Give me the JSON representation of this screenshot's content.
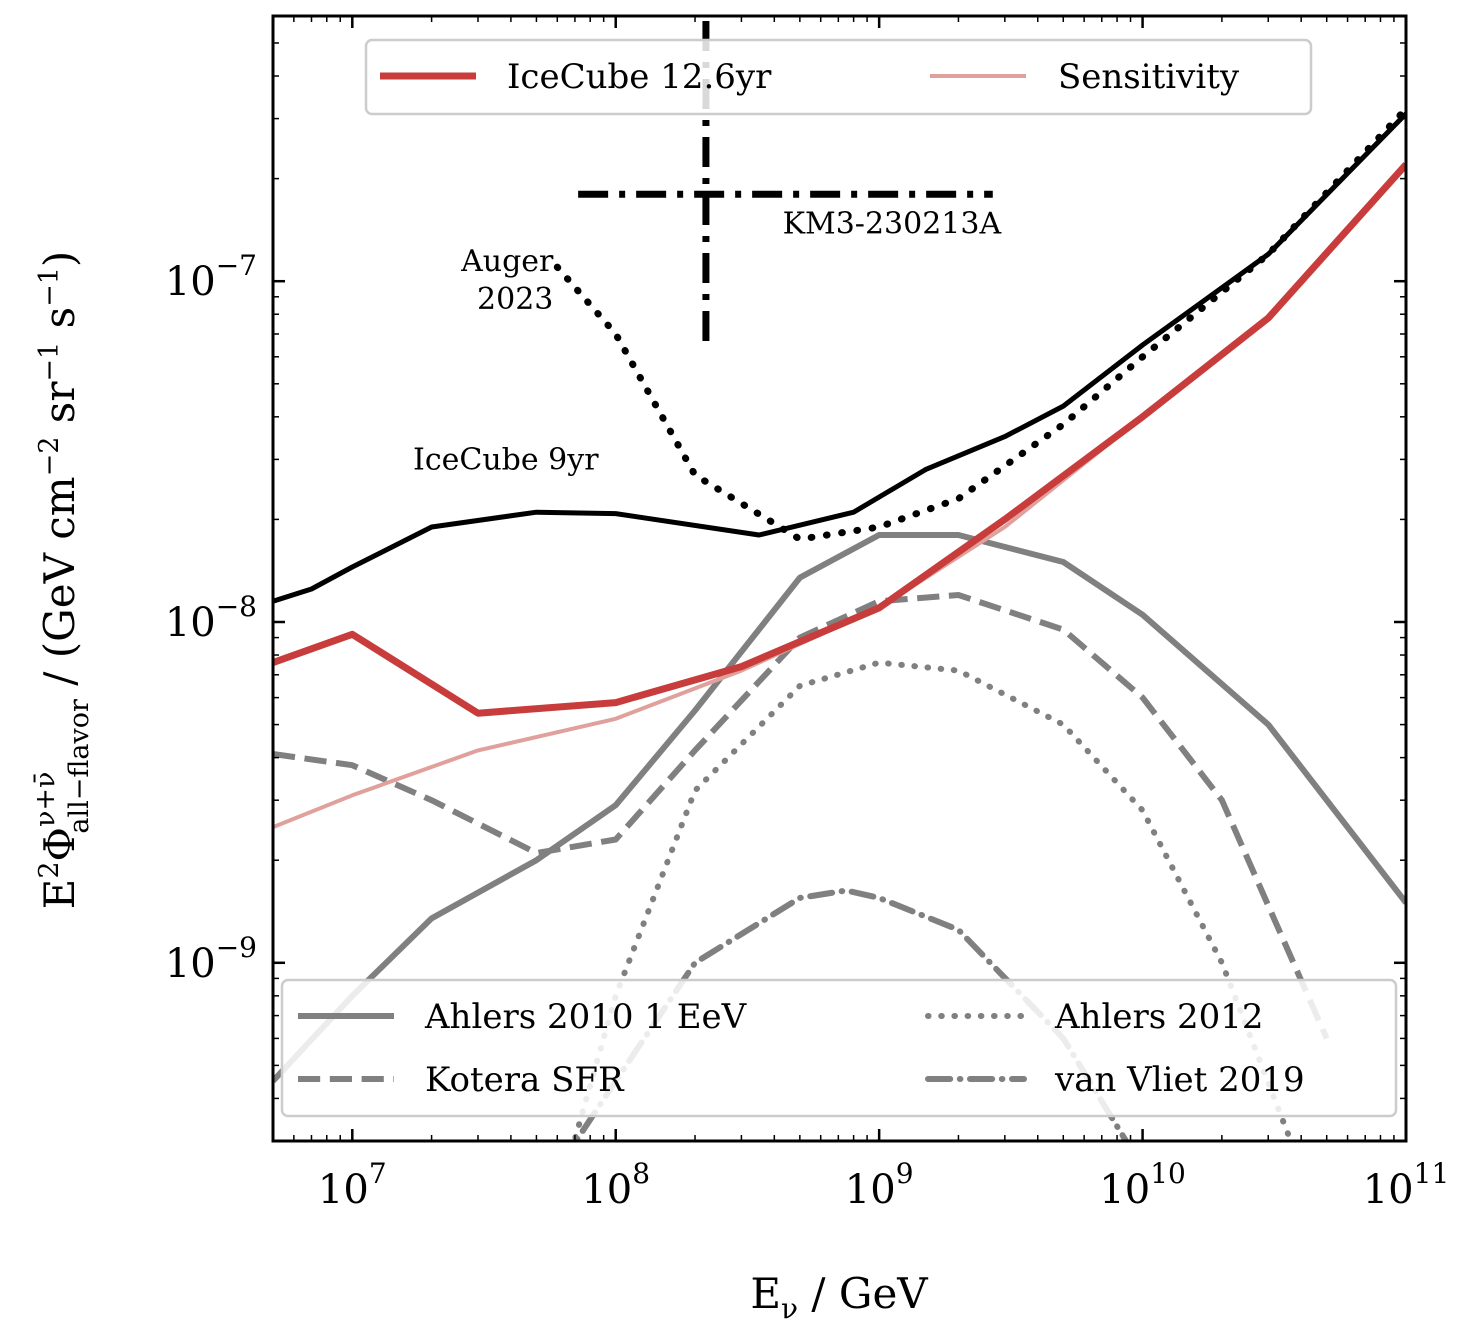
{
  "chart_data": {
    "type": "line",
    "xscale": "log",
    "yscale": "log",
    "xlim": [
      5000000,
      100000000000
    ],
    "ylim": [
      3e-10,
      6e-07
    ],
    "xlabel": "Eν / GeV",
    "ylabel": "E²Φ(ν+ν̄) all−flavor / (GeV cm⁻² sr⁻¹ s⁻¹)",
    "ylabel_parts": {
      "main1": "E",
      "sup1": "2",
      "main2": "Φ",
      "sup2": "ν+ν̄",
      "sub": "all−flavor",
      "rest1": " / (GeV cm",
      "sup3": "−2",
      "rest2": " sr",
      "sup4": "−1",
      "rest3": " s",
      "sup5": "−1",
      "rest4": ")"
    },
    "xticks": [
      {
        "value": 10000000,
        "base": "10",
        "exp": "7"
      },
      {
        "value": 100000000,
        "base": "10",
        "exp": "8"
      },
      {
        "value": 1000000000,
        "base": "10",
        "exp": "9"
      },
      {
        "value": 10000000000,
        "base": "10",
        "exp": "10"
      },
      {
        "value": 100000000000,
        "base": "10",
        "exp": "11"
      }
    ],
    "yticks": [
      {
        "value": 1e-09,
        "base": "10",
        "exp": "−9"
      },
      {
        "value": 1e-08,
        "base": "10",
        "exp": "−8"
      },
      {
        "value": 1e-07,
        "base": "10",
        "exp": "−7"
      }
    ],
    "series": [
      {
        "name": "IceCube 12.6yr",
        "color": "#c83c3c",
        "style": "solid",
        "width": 7,
        "in_legend": "top",
        "x": [
          5000000.0,
          10000000.0,
          30000000.0,
          100000000.0,
          300000000.0,
          1000000000.0,
          3000000000.0,
          10000000000.0,
          30000000000.0,
          100000000000.0
        ],
        "y": [
          7.6e-09,
          9.2e-09,
          5.4e-09,
          5.8e-09,
          7.4e-09,
          1.1e-08,
          2e-08,
          4e-08,
          7.8e-08,
          2.2e-07
        ]
      },
      {
        "name": "Sensitivity",
        "color": "#e0a09c",
        "style": "solid",
        "width": 4,
        "in_legend": "top",
        "x": [
          5000000.0,
          10000000.0,
          30000000.0,
          100000000.0,
          300000000.0,
          1000000000.0,
          3000000000.0,
          10000000000.0,
          30000000000.0,
          100000000000.0
        ],
        "y": [
          2.5e-09,
          3.1e-09,
          4.2e-09,
          5.2e-09,
          7.2e-09,
          1.1e-08,
          1.9e-08,
          4e-08,
          7.8e-08,
          2.2e-07
        ]
      },
      {
        "name": "IceCube 9yr",
        "color": "#000000",
        "style": "solid",
        "width": 5,
        "in_legend": "none",
        "x": [
          5000000.0,
          7000000.0,
          10000000.0,
          20000000.0,
          50000000.0,
          100000000.0,
          350000000.0,
          800000000.0,
          1500000000.0,
          3000000000.0,
          5000000000.0,
          10000000000.0,
          30000000000.0,
          100000000000.0
        ],
        "y": [
          1.15e-08,
          1.25e-08,
          1.45e-08,
          1.9e-08,
          2.1e-08,
          2.08e-08,
          1.8e-08,
          2.1e-08,
          2.8e-08,
          3.5e-08,
          4.3e-08,
          6.5e-08,
          1.2e-07,
          3.1e-07
        ]
      },
      {
        "name": "Auger 2023",
        "color": "#000000",
        "style": "dotted",
        "width": 7,
        "in_legend": "none",
        "x": [
          60000000.0,
          100000000.0,
          200000000.0,
          500000000.0,
          1000000000.0,
          2000000000.0,
          5000000000.0,
          10000000000.0,
          30000000000.0,
          100000000000.0
        ],
        "y": [
          1.1e-07,
          7e-08,
          2.7e-08,
          1.75e-08,
          1.9e-08,
          2.3e-08,
          3.8e-08,
          6e-08,
          1.2e-07,
          3.2e-07
        ]
      },
      {
        "name": "Ahlers 2010 1 EeV",
        "color": "#808080",
        "style": "solid",
        "width": 6,
        "in_legend": "bottom",
        "x": [
          5000000.0,
          10000000.0,
          20000000.0,
          50000000.0,
          100000000.0,
          200000000.0,
          500000000.0,
          1000000000.0,
          2000000000.0,
          5000000000.0,
          10000000000.0,
          30000000000.0,
          100000000000.0
        ],
        "y": [
          4.5e-10,
          8e-10,
          1.35e-09,
          2e-09,
          2.9e-09,
          5.5e-09,
          1.35e-08,
          1.8e-08,
          1.8e-08,
          1.5e-08,
          1.05e-08,
          5e-09,
          1.5e-09
        ]
      },
      {
        "name": "Kotera SFR",
        "color": "#808080",
        "style": "dashed",
        "width": 6,
        "in_legend": "bottom",
        "x": [
          5000000.0,
          10000000.0,
          20000000.0,
          50000000.0,
          100000000.0,
          200000000.0,
          500000000.0,
          1000000000.0,
          2000000000.0,
          5000000000.0,
          10000000000.0,
          20000000000.0,
          50000000000.0
        ],
        "y": [
          4.1e-09,
          3.8e-09,
          3e-09,
          2.1e-09,
          2.3e-09,
          4.2e-09,
          9e-09,
          1.15e-08,
          1.2e-08,
          9.5e-09,
          6e-09,
          3e-09,
          6e-10
        ]
      },
      {
        "name": "Ahlers 2012",
        "color": "#808080",
        "style": "dotted",
        "width": 6,
        "in_legend": "bottom",
        "x": [
          60000000.0,
          100000000.0,
          200000000.0,
          500000000.0,
          1000000000.0,
          2000000000.0,
          5000000000.0,
          10000000000.0,
          20000000000.0,
          40000000000.0
        ],
        "y": [
          2e-10,
          8e-10,
          3.2e-09,
          6.5e-09,
          7.6e-09,
          7.2e-09,
          5e-09,
          2.8e-09,
          1e-09,
          2.5e-10
        ]
      },
      {
        "name": "van Vliet 2019",
        "color": "#808080",
        "style": "dashdot",
        "width": 6,
        "in_legend": "bottom",
        "x": [
          50000000.0,
          100000000.0,
          200000000.0,
          500000000.0,
          750000000.0,
          1000000000.0,
          2000000000.0,
          5000000000.0,
          10000000000.0
        ],
        "y": [
          2e-10,
          4.5e-10,
          1e-09,
          1.55e-09,
          1.63e-09,
          1.55e-09,
          1.25e-09,
          6e-10,
          2.5e-10
        ]
      }
    ],
    "errorbar": {
      "name": "KM3-230213A",
      "color": "#000000",
      "x": 220000000,
      "y": 1.8e-07,
      "xmin": 72000000,
      "xmax": 2700000000,
      "ymin": 6.2e-08,
      "ymax": 5.8e-07
    },
    "annotations": [
      {
        "text": "IceCube 9yr",
        "x": 17000000.0,
        "y": 2.8e-08,
        "anchor": "start"
      },
      {
        "text": "Auger",
        "x": 58000000.0,
        "y": 1.07e-07,
        "anchor": "end"
      },
      {
        "text": "2023",
        "x": 58000000.0,
        "y": 8.3e-08,
        "anchor": "end"
      },
      {
        "text": "KM3-230213A",
        "x": 430000000.0,
        "y": 1.38e-07,
        "anchor": "start"
      }
    ],
    "legend_top": {
      "position": "top-center",
      "entries": [
        "IceCube 12.6yr",
        "Sensitivity"
      ]
    },
    "legend_bottom": {
      "position": "lower-center",
      "entries": [
        "Ahlers 2010 1 EeV",
        "Ahlers 2012",
        "Kotera SFR",
        "van Vliet 2019"
      ]
    }
  }
}
